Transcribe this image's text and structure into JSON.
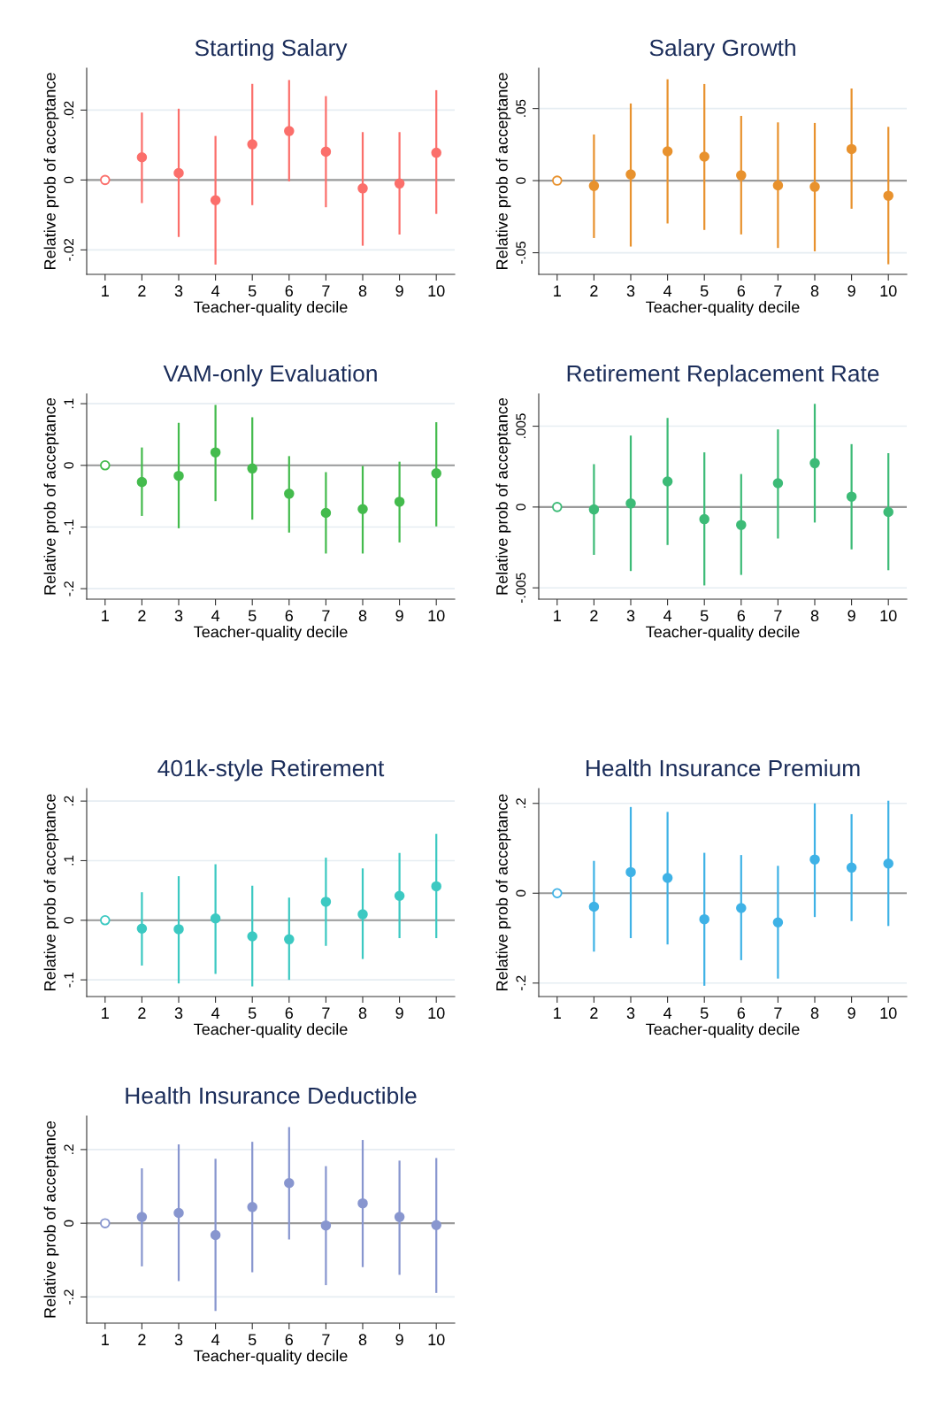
{
  "chart_data": [
    {
      "type": "scatter",
      "title": "Starting Salary",
      "xlabel": "Teacher-quality decile",
      "ylabel": "Relative prob of acceptance",
      "x": [
        1,
        2,
        3,
        4,
        5,
        6,
        7,
        8,
        9,
        10
      ],
      "xlim": [
        0.5,
        10.5
      ],
      "xticks": [
        1,
        2,
        3,
        4,
        5,
        6,
        7,
        8,
        9,
        10
      ],
      "ylim": [
        -0.027,
        0.032
      ],
      "yticks": [
        {
          "value": -0.02,
          "label": "-.02"
        },
        0,
        {
          "value": 0.02,
          "label": ".02"
        }
      ],
      "grid": "y",
      "marker": "circle",
      "ref_lines": [
        {
          "axis": "y",
          "value": 0,
          "color": "#9a9a9a"
        }
      ],
      "series": [
        {
          "color": "#fb6f6b",
          "colors": [
            "#ffffff",
            "#fb6f6b",
            "#fb6f6b",
            "#fb6f6b",
            "#fb6f6b",
            "#fb6f6b",
            "#fb6f6b",
            "#fb6f6b",
            "#fb6f6b",
            "#fb6f6b"
          ],
          "values": [
            0,
            0.0065,
            0.002,
            -0.0058,
            0.0102,
            0.014,
            0.0081,
            -0.0024,
            -0.001,
            0.0078
          ],
          "errors": [
            null,
            [
              -0.0066,
              0.0193
            ],
            [
              -0.0163,
              0.0204
            ],
            [
              -0.0242,
              0.0126
            ],
            [
              -0.0072,
              0.0275
            ],
            [
              -0.0004,
              0.0286
            ],
            [
              -0.0078,
              0.024
            ],
            [
              -0.0188,
              0.0137
            ],
            [
              -0.0156,
              0.0137
            ],
            [
              -0.0097,
              0.0257
            ]
          ]
        }
      ]
    },
    {
      "type": "scatter",
      "title": "Salary Growth",
      "xlabel": "Teacher-quality decile",
      "ylabel": "Relative prob of acceptance",
      "x": [
        1,
        2,
        3,
        4,
        5,
        6,
        7,
        8,
        9,
        10
      ],
      "xlim": [
        0.5,
        10.5
      ],
      "xticks": [
        1,
        2,
        3,
        4,
        5,
        6,
        7,
        8,
        9,
        10
      ],
      "ylim": [
        -0.065,
        0.078
      ],
      "yticks": [
        {
          "value": -0.05,
          "label": "-.05"
        },
        0,
        {
          "value": 0.05,
          "label": ".05"
        }
      ],
      "grid": "y",
      "marker": "circle",
      "ref_lines": [
        {
          "axis": "y",
          "value": 0,
          "color": "#9a9a9a"
        }
      ],
      "series": [
        {
          "color": "#e8922e",
          "colors": [
            "#ffffff",
            "#e8922e",
            "#e8922e",
            "#e8922e",
            "#e8922e",
            "#e8922e",
            "#e8922e",
            "#e8922e",
            "#e8922e",
            "#e8922e"
          ],
          "values": [
            0,
            -0.0037,
            0.0043,
            0.0203,
            0.0166,
            0.0037,
            -0.0033,
            -0.0043,
            0.0219,
            -0.0105
          ],
          "errors": [
            null,
            [
              -0.0398,
              0.032
            ],
            [
              -0.0457,
              0.0535
            ],
            [
              -0.0297,
              0.0703
            ],
            [
              -0.0342,
              0.067
            ],
            [
              -0.0373,
              0.0449
            ],
            [
              -0.0467,
              0.0404
            ],
            [
              -0.049,
              0.04
            ],
            [
              -0.0195,
              0.0639
            ],
            [
              -0.058,
              0.0373
            ]
          ]
        }
      ]
    },
    {
      "type": "scatter",
      "title": "VAM-only Evaluation",
      "xlabel": "Teacher-quality decile",
      "ylabel": "Relative prob of acceptance",
      "x": [
        1,
        2,
        3,
        4,
        5,
        6,
        7,
        8,
        9,
        10
      ],
      "xlim": [
        0.5,
        10.5
      ],
      "xticks": [
        1,
        2,
        3,
        4,
        5,
        6,
        7,
        8,
        9,
        10
      ],
      "ylim": [
        -0.217,
        0.116
      ],
      "yticks": [
        {
          "value": -0.2,
          "label": "-.2"
        },
        {
          "value": -0.1,
          "label": "-.1"
        },
        0,
        {
          "value": 0.1,
          "label": ".1"
        }
      ],
      "grid": "y",
      "marker": "circle",
      "ref_lines": [
        {
          "axis": "y",
          "value": 0,
          "color": "#9a9a9a"
        }
      ],
      "series": [
        {
          "color": "#44bb4d",
          "colors": [
            "#ffffff",
            "#44bb4d",
            "#44bb4d",
            "#44bb4d",
            "#44bb4d",
            "#44bb4d",
            "#44bb4d",
            "#44bb4d",
            "#44bb4d",
            "#44bb4d"
          ],
          "values": [
            0,
            -0.027,
            -0.017,
            0.021,
            -0.005,
            -0.046,
            -0.077,
            -0.071,
            -0.059,
            -0.013
          ],
          "errors": [
            null,
            [
              -0.082,
              0.029
            ],
            [
              -0.102,
              0.069
            ],
            [
              -0.058,
              0.098
            ],
            [
              -0.088,
              0.078
            ],
            [
              -0.109,
              0.015
            ],
            [
              -0.143,
              -0.011
            ],
            [
              -0.143,
              -0.001
            ],
            [
              -0.125,
              0.006
            ],
            [
              -0.099,
              0.07
            ]
          ]
        }
      ]
    },
    {
      "type": "scatter",
      "title": "Retirement Replacement Rate",
      "xlabel": "Teacher-quality decile",
      "ylabel": "Relative prob of acceptance",
      "x": [
        1,
        2,
        3,
        4,
        5,
        6,
        7,
        8,
        9,
        10
      ],
      "xlim": [
        0.5,
        10.5
      ],
      "xticks": [
        1,
        2,
        3,
        4,
        5,
        6,
        7,
        8,
        9,
        10
      ],
      "ylim": [
        -0.0057,
        0.007
      ],
      "yticks": [
        {
          "value": -0.005,
          "label": "-.005"
        },
        0,
        {
          "value": 0.005,
          "label": ".005"
        }
      ],
      "grid": "y",
      "marker": "circle",
      "ref_lines": [
        {
          "axis": "y",
          "value": 0,
          "color": "#9a9a9a"
        }
      ],
      "series": [
        {
          "color": "#3dbb77",
          "colors": [
            "#ffffff",
            "#3dbb77",
            "#3dbb77",
            "#3dbb77",
            "#3dbb77",
            "#3dbb77",
            "#3dbb77",
            "#3dbb77",
            "#3dbb77",
            "#3dbb77"
          ],
          "values": [
            0,
            -0.00015,
            0.00022,
            0.00158,
            -0.00075,
            -0.00111,
            0.00147,
            0.00271,
            0.00064,
            -0.00031
          ],
          "errors": [
            null,
            [
              -0.00296,
              0.00265
            ],
            [
              -0.00396,
              0.00442
            ],
            [
              -0.00235,
              0.00551
            ],
            [
              -0.00485,
              0.00338
            ],
            [
              -0.0042,
              0.00204
            ],
            [
              -0.00195,
              0.0048
            ],
            [
              -0.00096,
              0.00638
            ],
            [
              -0.00262,
              0.00389
            ],
            [
              -0.00391,
              0.00333
            ]
          ]
        }
      ]
    },
    {
      "type": "scatter",
      "title": "401k-style Retirement",
      "xlabel": "Teacher-quality decile",
      "ylabel": "Relative prob of acceptance",
      "x": [
        1,
        2,
        3,
        4,
        5,
        6,
        7,
        8,
        9,
        10
      ],
      "xlim": [
        0.5,
        10.5
      ],
      "xticks": [
        1,
        2,
        3,
        4,
        5,
        6,
        7,
        8,
        9,
        10
      ],
      "ylim": [
        -0.128,
        0.221
      ],
      "yticks": [
        {
          "value": -0.1,
          "label": "-.1"
        },
        0,
        {
          "value": 0.1,
          "label": ".1"
        },
        {
          "value": 0.2,
          "label": ".2"
        }
      ],
      "grid": "y",
      "marker": "circle",
      "ref_lines": [
        {
          "axis": "y",
          "value": 0,
          "color": "#9a9a9a"
        }
      ],
      "series": [
        {
          "color": "#3cc9c2",
          "colors": [
            "#ffffff",
            "#3cc9c2",
            "#3cc9c2",
            "#3cc9c2",
            "#3cc9c2",
            "#3cc9c2",
            "#3cc9c2",
            "#3cc9c2",
            "#3cc9c2",
            "#3cc9c2"
          ],
          "values": [
            0,
            -0.014,
            -0.015,
            0.003,
            -0.027,
            -0.032,
            0.031,
            0.01,
            0.041,
            0.057
          ],
          "errors": [
            null,
            [
              -0.076,
              0.047
            ],
            [
              -0.106,
              0.074
            ],
            [
              -0.09,
              0.094
            ],
            [
              -0.111,
              0.058
            ],
            [
              -0.1,
              0.038
            ],
            [
              -0.043,
              0.105
            ],
            [
              -0.065,
              0.087
            ],
            [
              -0.03,
              0.113
            ],
            [
              -0.03,
              0.145
            ]
          ]
        }
      ]
    },
    {
      "type": "scatter",
      "title": "Health Insurance Premium",
      "xlabel": "Teacher-quality decile",
      "ylabel": "Relative prob of acceptance",
      "x": [
        1,
        2,
        3,
        4,
        5,
        6,
        7,
        8,
        9,
        10
      ],
      "xlim": [
        0.5,
        10.5
      ],
      "xticks": [
        1,
        2,
        3,
        4,
        5,
        6,
        7,
        8,
        9,
        10
      ],
      "ylim": [
        -0.23,
        0.233
      ],
      "yticks": [
        {
          "value": -0.2,
          "label": "-.2"
        },
        0,
        {
          "value": 0.2,
          "label": ".2"
        }
      ],
      "grid": "y",
      "marker": "circle",
      "ref_lines": [
        {
          "axis": "y",
          "value": 0,
          "color": "#9a9a9a"
        }
      ],
      "series": [
        {
          "color": "#3fb2e6",
          "colors": [
            "#ffffff",
            "#3fb2e6",
            "#3fb2e6",
            "#3fb2e6",
            "#3fb2e6",
            "#3fb2e6",
            "#3fb2e6",
            "#3fb2e6",
            "#3fb2e6",
            "#3fb2e6"
          ],
          "values": [
            0,
            -0.03,
            0.047,
            0.034,
            -0.058,
            -0.033,
            -0.065,
            0.075,
            0.057,
            0.066
          ],
          "errors": [
            null,
            [
              -0.13,
              0.072
            ],
            [
              -0.1,
              0.192
            ],
            [
              -0.114,
              0.181
            ],
            [
              -0.206,
              0.09
            ],
            [
              -0.149,
              0.085
            ],
            [
              -0.19,
              0.061
            ],
            [
              -0.053,
              0.2
            ],
            [
              -0.062,
              0.176
            ],
            [
              -0.073,
              0.206
            ]
          ]
        }
      ]
    },
    {
      "type": "scatter",
      "title": "Health Insurance Deductible",
      "xlabel": "Teacher-quality decile",
      "ylabel": "Relative prob of acceptance",
      "x": [
        1,
        2,
        3,
        4,
        5,
        6,
        7,
        8,
        9,
        10
      ],
      "xlim": [
        0.5,
        10.5
      ],
      "xticks": [
        1,
        2,
        3,
        4,
        5,
        6,
        7,
        8,
        9,
        10
      ],
      "ylim": [
        -0.271,
        0.291
      ],
      "yticks": [
        {
          "value": -0.2,
          "label": "-.2"
        },
        0,
        {
          "value": 0.2,
          "label": ".2"
        }
      ],
      "grid": "y",
      "marker": "circle",
      "ref_lines": [
        {
          "axis": "y",
          "value": 0,
          "color": "#9a9a9a"
        }
      ],
      "series": [
        {
          "color": "#8896cf",
          "colors": [
            "#ffffff",
            "#8896cf",
            "#8896cf",
            "#8896cf",
            "#8896cf",
            "#8896cf",
            "#8896cf",
            "#8896cf",
            "#8896cf",
            "#8896cf"
          ],
          "values": [
            0,
            0.017,
            0.028,
            -0.032,
            0.044,
            0.109,
            -0.006,
            0.054,
            0.017,
            -0.005
          ],
          "errors": [
            null,
            [
              -0.117,
              0.149
            ],
            [
              -0.157,
              0.214
            ],
            [
              -0.238,
              0.175
            ],
            [
              -0.133,
              0.221
            ],
            [
              -0.044,
              0.261
            ],
            [
              -0.168,
              0.155
            ],
            [
              -0.119,
              0.226
            ],
            [
              -0.14,
              0.17
            ],
            [
              -0.189,
              0.177
            ]
          ]
        }
      ]
    }
  ]
}
